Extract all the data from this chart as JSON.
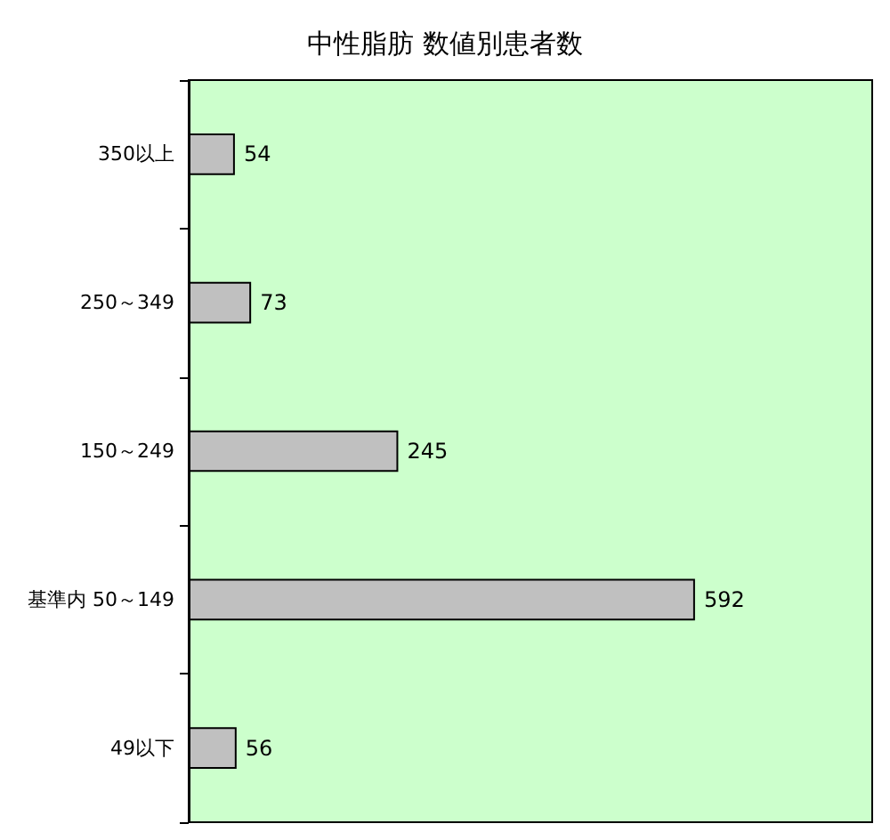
{
  "chart_data": {
    "type": "bar",
    "orientation": "horizontal",
    "title": "中性脂肪 数値別患者数",
    "categories": [
      "350以上",
      "250～349",
      "150～249",
      "基準内 50～149",
      "49以下"
    ],
    "values": [
      54,
      73,
      245,
      592,
      56
    ],
    "color": "#c0c0c0",
    "data_labels": true
  }
}
